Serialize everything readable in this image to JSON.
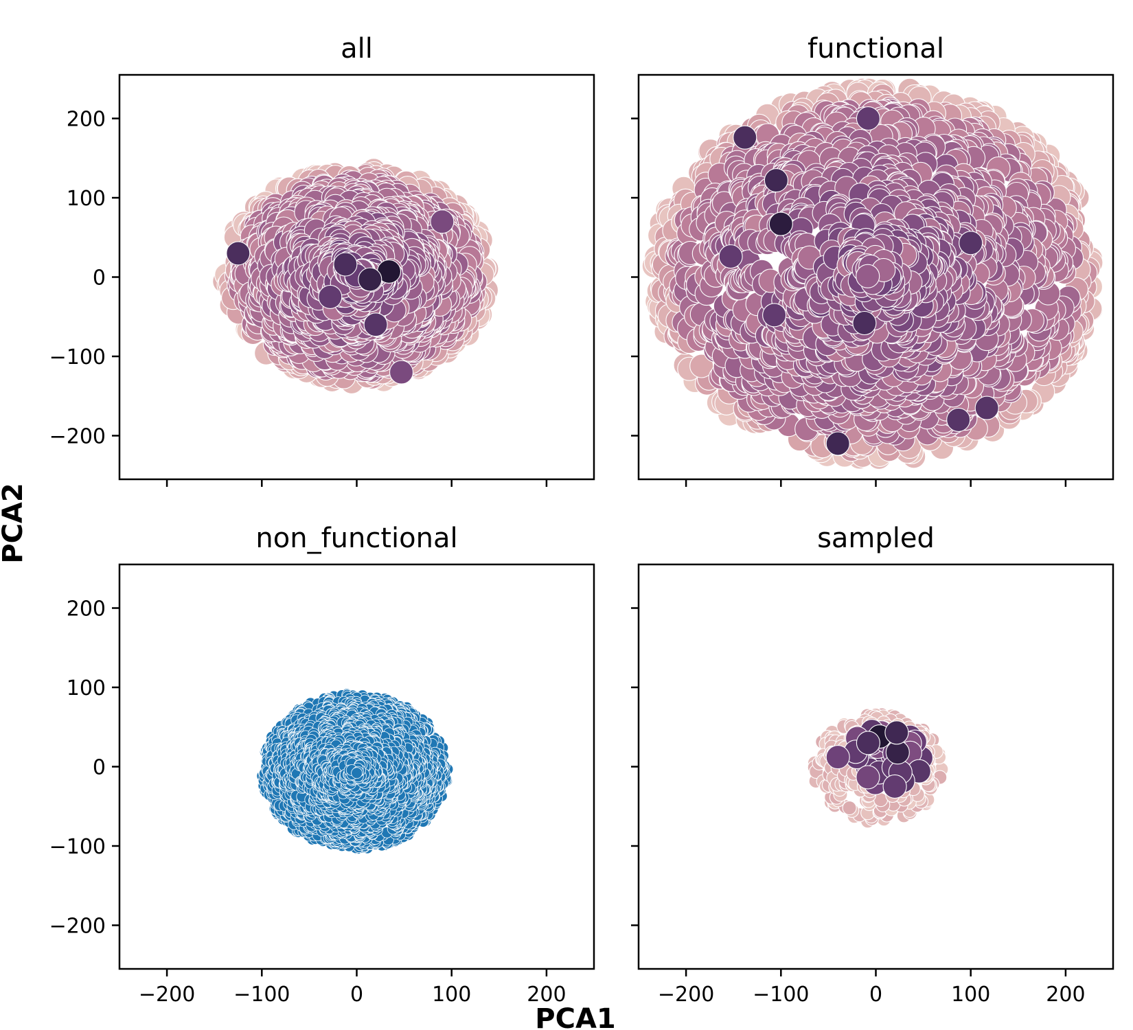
{
  "figure": {
    "xlabel": "PCA1",
    "ylabel": "PCA2"
  },
  "chart_data": [
    {
      "type": "scatter",
      "title": "all",
      "xlim": [
        -250,
        250
      ],
      "ylim": [
        -255,
        255
      ],
      "xticks": [
        -200,
        -100,
        0,
        100,
        200
      ],
      "yticks": [
        -200,
        -100,
        0,
        100,
        200
      ],
      "tick_labels": [
        "−200",
        "−100",
        "0",
        "100",
        "200"
      ],
      "show_xtick_labels": false,
      "show_ytick_labels": true,
      "cloud": {
        "center": [
          0,
          2
        ],
        "rx": 140,
        "ry": 135,
        "count": 950,
        "radius": 17,
        "palette": "cubehelix"
      },
      "highlights": [
        [
          34,
          7,
          1.0
        ],
        [
          14,
          -3,
          0.9
        ],
        [
          -125,
          30,
          0.8
        ],
        [
          -12,
          16,
          0.8
        ],
        [
          20,
          -60,
          0.75
        ],
        [
          -28,
          -25,
          0.7
        ],
        [
          47,
          -120,
          0.6
        ],
        [
          90,
          70,
          0.6
        ]
      ]
    },
    {
      "type": "scatter",
      "title": "functional",
      "xlim": [
        -250,
        250
      ],
      "ylim": [
        -255,
        255
      ],
      "xticks": [
        -200,
        -100,
        0,
        100,
        200
      ],
      "yticks": [
        -200,
        -100,
        0,
        100,
        200
      ],
      "tick_labels": [
        "−200",
        "−100",
        "0",
        "100",
        "200"
      ],
      "show_xtick_labels": false,
      "show_ytick_labels": false,
      "cloud": {
        "center": [
          0,
          4
        ],
        "rx": 235,
        "ry": 235,
        "count": 1500,
        "radius": 17,
        "palette": "cubehelix"
      },
      "highlights": [
        [
          -100,
          67,
          0.95
        ],
        [
          -105,
          122,
          0.85
        ],
        [
          -40,
          -210,
          0.85
        ],
        [
          -138,
          176,
          0.8
        ],
        [
          -12,
          -58,
          0.8
        ],
        [
          100,
          43,
          0.75
        ],
        [
          117,
          -165,
          0.75
        ],
        [
          87,
          -180,
          0.75
        ],
        [
          -153,
          26,
          0.7
        ],
        [
          -107,
          -48,
          0.7
        ],
        [
          -8,
          200,
          0.7
        ]
      ]
    },
    {
      "type": "scatter",
      "title": "non_functional",
      "xlim": [
        -250,
        250
      ],
      "ylim": [
        -255,
        255
      ],
      "xticks": [
        -200,
        -100,
        0,
        100,
        200
      ],
      "yticks": [
        -200,
        -100,
        0,
        100,
        200
      ],
      "tick_labels": [
        "−200",
        "−100",
        "0",
        "100",
        "200"
      ],
      "show_xtick_labels": true,
      "show_ytick_labels": true,
      "cloud": {
        "center": [
          -2,
          -6
        ],
        "rx": 98,
        "ry": 98,
        "count": 1600,
        "radius": 8,
        "color": "#1f77b4"
      },
      "highlights": []
    },
    {
      "type": "scatter",
      "title": "sampled",
      "xlim": [
        -250,
        250
      ],
      "ylim": [
        -255,
        255
      ],
      "xticks": [
        -200,
        -100,
        0,
        100,
        200
      ],
      "yticks": [
        -200,
        -100,
        0,
        100,
        200
      ],
      "tick_labels": [
        "−200",
        "−100",
        "0",
        "100",
        "200"
      ],
      "show_xtick_labels": true,
      "show_ytick_labels": false,
      "cloud": {
        "center": [
          2,
          -2
        ],
        "rx": 68,
        "ry": 68,
        "count": 240,
        "radius": 10,
        "palette": "light"
      },
      "inner": {
        "center": [
          10,
          10
        ],
        "rx": 45,
        "ry": 38,
        "count": 26,
        "radius": 17
      },
      "highlights": [
        [
          4,
          38,
          1.0
        ],
        [
          23,
          18,
          0.9
        ],
        [
          22,
          43,
          0.85
        ],
        [
          -8,
          30,
          0.8
        ],
        [
          20,
          -25,
          0.7
        ],
        [
          -40,
          12,
          0.65
        ]
      ]
    }
  ]
}
